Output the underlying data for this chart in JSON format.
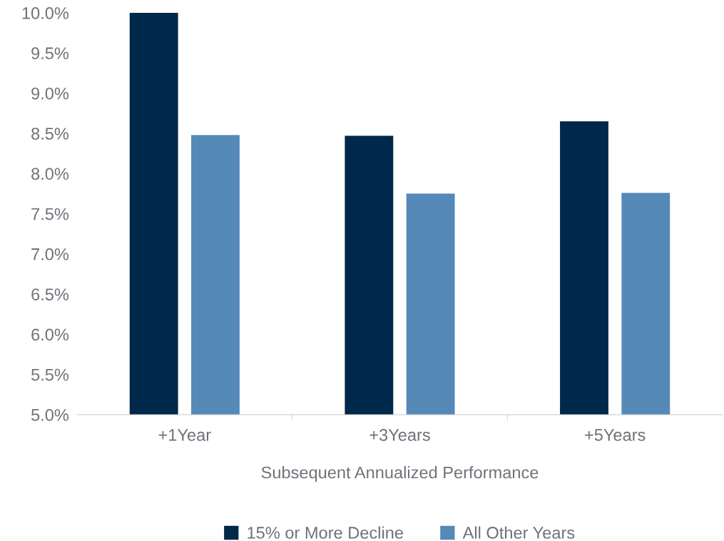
{
  "chart_data": {
    "type": "bar",
    "xlabel": "Subsequent Annualized Performance",
    "categories": [
      "+1Year",
      "+3Years",
      "+5Years"
    ],
    "series": [
      {
        "name": "15% or More Decline",
        "color": "#00284a",
        "values": [
          10.0,
          8.47,
          8.65
        ]
      },
      {
        "name": "All Other Years",
        "color": "#5589b8",
        "values": [
          8.48,
          7.75,
          7.76
        ]
      }
    ],
    "ylim": [
      5,
      10
    ],
    "yticks": [
      {
        "value": 5,
        "label": "5.0%"
      },
      {
        "value": 5.5,
        "label": "5.5%"
      },
      {
        "value": 6,
        "label": "6.0%"
      },
      {
        "value": 6.5,
        "label": "6.5%"
      },
      {
        "value": 7,
        "label": "7.0%"
      },
      {
        "value": 7.5,
        "label": "7.5%"
      },
      {
        "value": 8,
        "label": "8.0%"
      },
      {
        "value": 8.5,
        "label": "8.5%"
      },
      {
        "value": 9,
        "label": "9.0%"
      },
      {
        "value": 9.5,
        "label": "9.5%"
      },
      {
        "value": 10,
        "label": "10.0%"
      }
    ],
    "grid": false,
    "legend": "bottom"
  }
}
